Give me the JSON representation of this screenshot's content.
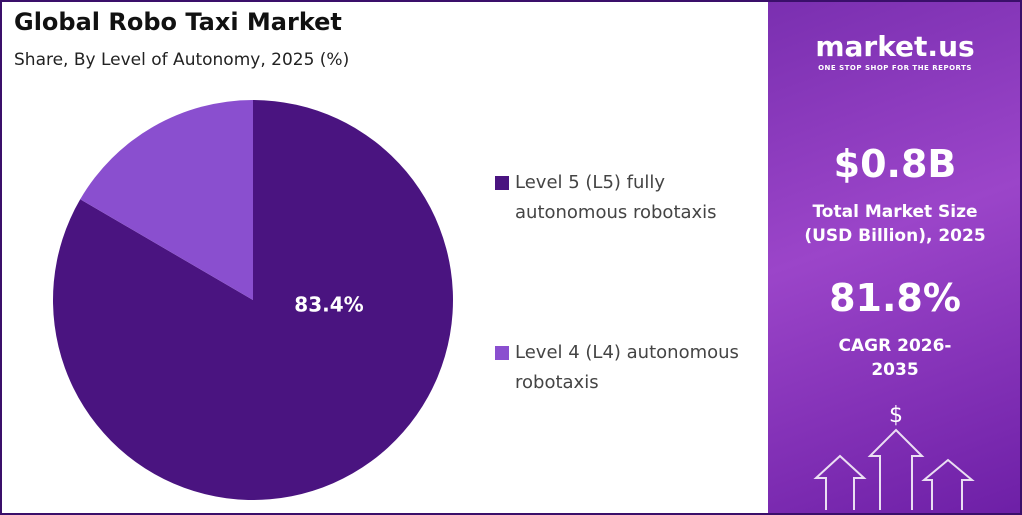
{
  "chart_data": {
    "type": "pie",
    "title": "Global Robo Taxi Market",
    "subtitle": "Share, By Level of Autonomy, 2025 (%)",
    "categories": [
      "Level 5 (L5) fully autonomous robotaxis",
      "Level 4 (L4) autonomous robotaxis"
    ],
    "values": [
      83.4,
      16.6
    ],
    "value_labels": [
      "83.4%",
      null
    ],
    "colors": [
      "#4a1480",
      "#8a4fcf"
    ]
  },
  "panel": {
    "brand": "market.us",
    "tagline": "ONE STOP SHOP FOR THE REPORTS",
    "market_size": "$0.8B",
    "market_size_label": "Total Market Size (USD Billion), 2025",
    "cagr": "81.8%",
    "cagr_label": "CAGR 2026-2035"
  }
}
